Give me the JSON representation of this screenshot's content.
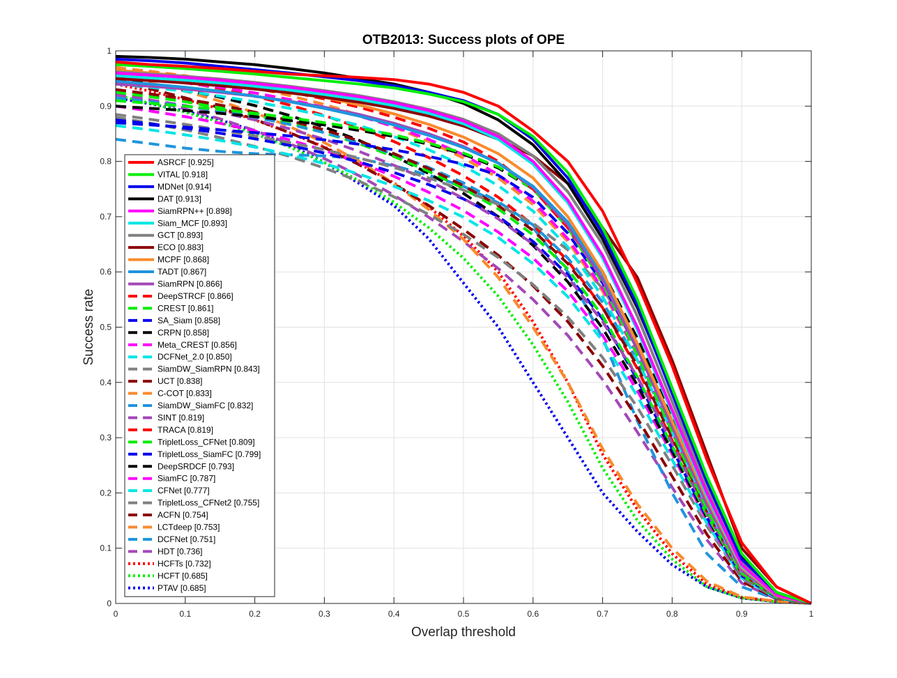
{
  "chart_data": {
    "type": "line",
    "title": "OTB2013: Success plots of OPE",
    "xlabel": "Overlap threshold",
    "ylabel": "Success rate",
    "xlim": [
      0,
      1
    ],
    "ylim": [
      0,
      1
    ],
    "grid": true,
    "legend_position": "bottom-left",
    "x_ticks": [
      "0",
      "0.1",
      "0.2",
      "0.3",
      "0.4",
      "0.5",
      "0.6",
      "0.7",
      "0.8",
      "0.9",
      "1"
    ],
    "y_ticks": [
      "0",
      "0.1",
      "0.2",
      "0.3",
      "0.4",
      "0.5",
      "0.6",
      "0.7",
      "0.8",
      "0.9",
      "1"
    ],
    "x": [
      0,
      0.05,
      0.1,
      0.15,
      0.2,
      0.25,
      0.3,
      0.35,
      0.4,
      0.45,
      0.5,
      0.55,
      0.6,
      0.65,
      0.7,
      0.75,
      0.8,
      0.85,
      0.9,
      0.95,
      1
    ],
    "series": [
      {
        "name": "ASRCF [0.925]",
        "color": "#ff0000",
        "style": "solid",
        "values": [
          0.98,
          0.975,
          0.972,
          0.968,
          0.963,
          0.958,
          0.955,
          0.952,
          0.948,
          0.94,
          0.925,
          0.9,
          0.855,
          0.8,
          0.71,
          0.58,
          0.43,
          0.26,
          0.11,
          0.03,
          0
        ]
      },
      {
        "name": "VITAL [0.918]",
        "color": "#00ee00",
        "style": "solid",
        "values": [
          0.975,
          0.972,
          0.968,
          0.963,
          0.958,
          0.952,
          0.946,
          0.94,
          0.933,
          0.922,
          0.908,
          0.885,
          0.845,
          0.78,
          0.68,
          0.55,
          0.39,
          0.23,
          0.09,
          0.02,
          0
        ]
      },
      {
        "name": "MDNet [0.914]",
        "color": "#0000ee",
        "style": "solid",
        "values": [
          0.985,
          0.982,
          0.978,
          0.972,
          0.966,
          0.96,
          0.953,
          0.946,
          0.937,
          0.925,
          0.91,
          0.885,
          0.84,
          0.77,
          0.67,
          0.54,
          0.38,
          0.22,
          0.08,
          0.02,
          0
        ]
      },
      {
        "name": "DAT [0.913]",
        "color": "#000000",
        "style": "solid",
        "values": [
          0.99,
          0.988,
          0.985,
          0.98,
          0.975,
          0.968,
          0.96,
          0.95,
          0.94,
          0.925,
          0.905,
          0.875,
          0.83,
          0.76,
          0.66,
          0.535,
          0.385,
          0.225,
          0.085,
          0.02,
          0
        ]
      },
      {
        "name": "SiamRPN++ [0.898]",
        "color": "#ff00ff",
        "style": "solid",
        "values": [
          0.96,
          0.956,
          0.952,
          0.947,
          0.941,
          0.934,
          0.926,
          0.917,
          0.906,
          0.892,
          0.873,
          0.845,
          0.8,
          0.73,
          0.63,
          0.5,
          0.35,
          0.2,
          0.07,
          0.015,
          0
        ]
      },
      {
        "name": "Siam_MCF [0.893]",
        "color": "#00e5e5",
        "style": "solid",
        "values": [
          0.955,
          0.951,
          0.947,
          0.942,
          0.936,
          0.929,
          0.921,
          0.912,
          0.901,
          0.887,
          0.868,
          0.84,
          0.795,
          0.725,
          0.625,
          0.495,
          0.345,
          0.195,
          0.068,
          0.015,
          0
        ]
      },
      {
        "name": "GCT [0.893]",
        "color": "#808080",
        "style": "solid",
        "values": [
          0.962,
          0.958,
          0.954,
          0.949,
          0.943,
          0.936,
          0.928,
          0.919,
          0.908,
          0.894,
          0.876,
          0.85,
          0.81,
          0.745,
          0.65,
          0.52,
          0.365,
          0.21,
          0.075,
          0.018,
          0
        ]
      },
      {
        "name": "ECO [0.883]",
        "color": "#8b0000",
        "style": "solid",
        "values": [
          0.95,
          0.946,
          0.942,
          0.937,
          0.931,
          0.924,
          0.916,
          0.907,
          0.896,
          0.882,
          0.864,
          0.84,
          0.81,
          0.76,
          0.68,
          0.59,
          0.44,
          0.27,
          0.1,
          0.03,
          0
        ]
      },
      {
        "name": "MCPF [0.868]",
        "color": "#f98a2c",
        "style": "solid",
        "values": [
          0.965,
          0.96,
          0.954,
          0.947,
          0.938,
          0.928,
          0.916,
          0.902,
          0.886,
          0.867,
          0.844,
          0.814,
          0.77,
          0.7,
          0.6,
          0.47,
          0.33,
          0.19,
          0.065,
          0.014,
          0
        ]
      },
      {
        "name": "TADT [0.867]",
        "color": "#1f95dd",
        "style": "solid",
        "values": [
          0.945,
          0.94,
          0.934,
          0.927,
          0.918,
          0.908,
          0.896,
          0.882,
          0.866,
          0.847,
          0.825,
          0.797,
          0.755,
          0.69,
          0.595,
          0.47,
          0.33,
          0.19,
          0.065,
          0.014,
          0
        ]
      },
      {
        "name": "SiamRPN [0.866]",
        "color": "#a347b8",
        "style": "solid",
        "values": [
          0.94,
          0.936,
          0.931,
          0.925,
          0.918,
          0.909,
          0.898,
          0.885,
          0.869,
          0.85,
          0.827,
          0.797,
          0.753,
          0.685,
          0.585,
          0.46,
          0.32,
          0.18,
          0.06,
          0.013,
          0
        ]
      },
      {
        "name": "DeepSTRCF [0.866]",
        "color": "#ff0000",
        "style": "dashed",
        "values": [
          0.965,
          0.96,
          0.954,
          0.946,
          0.937,
          0.926,
          0.913,
          0.898,
          0.88,
          0.86,
          0.835,
          0.8,
          0.75,
          0.68,
          0.59,
          0.47,
          0.33,
          0.19,
          0.065,
          0.014,
          0
        ]
      },
      {
        "name": "CREST [0.861]",
        "color": "#00ee00",
        "style": "dashed",
        "values": [
          0.91,
          0.905,
          0.9,
          0.894,
          0.887,
          0.879,
          0.87,
          0.86,
          0.848,
          0.833,
          0.815,
          0.79,
          0.75,
          0.68,
          0.58,
          0.45,
          0.31,
          0.17,
          0.055,
          0.012,
          0
        ]
      },
      {
        "name": "SA_Siam [0.858]",
        "color": "#0000ee",
        "style": "dashed",
        "values": [
          0.87,
          0.866,
          0.862,
          0.857,
          0.852,
          0.846,
          0.839,
          0.831,
          0.821,
          0.809,
          0.795,
          0.775,
          0.735,
          0.67,
          0.58,
          0.46,
          0.32,
          0.185,
          0.062,
          0.014,
          0
        ]
      },
      {
        "name": "CRPN [0.858]",
        "color": "#000000",
        "style": "dashed",
        "values": [
          0.9,
          0.896,
          0.892,
          0.887,
          0.881,
          0.874,
          0.866,
          0.856,
          0.845,
          0.831,
          0.813,
          0.788,
          0.75,
          0.69,
          0.6,
          0.48,
          0.34,
          0.2,
          0.07,
          0.016,
          0
        ]
      },
      {
        "name": "Meta_CREST [0.856]",
        "color": "#ff00ff",
        "style": "dashed",
        "values": [
          0.955,
          0.949,
          0.942,
          0.934,
          0.924,
          0.912,
          0.898,
          0.882,
          0.863,
          0.84,
          0.812,
          0.776,
          0.728,
          0.66,
          0.57,
          0.45,
          0.31,
          0.175,
          0.058,
          0.013,
          0
        ]
      },
      {
        "name": "DCFNet_2.0 [0.850]",
        "color": "#00e5e5",
        "style": "dashed",
        "values": [
          0.94,
          0.934,
          0.927,
          0.918,
          0.908,
          0.896,
          0.882,
          0.865,
          0.845,
          0.821,
          0.792,
          0.756,
          0.71,
          0.645,
          0.555,
          0.44,
          0.31,
          0.175,
          0.058,
          0.013,
          0
        ]
      },
      {
        "name": "SiamDW_SiamRPN [0.843]",
        "color": "#808080",
        "style": "dashed",
        "values": [
          0.885,
          0.876,
          0.867,
          0.857,
          0.846,
          0.834,
          0.821,
          0.806,
          0.789,
          0.77,
          0.748,
          0.722,
          0.688,
          0.64,
          0.57,
          0.47,
          0.33,
          0.19,
          0.065,
          0.015,
          0
        ]
      },
      {
        "name": "UCT [0.838]",
        "color": "#8b0000",
        "style": "dashed",
        "values": [
          0.93,
          0.922,
          0.913,
          0.902,
          0.889,
          0.874,
          0.857,
          0.837,
          0.814,
          0.787,
          0.756,
          0.72,
          0.675,
          0.615,
          0.535,
          0.43,
          0.3,
          0.17,
          0.055,
          0.012,
          0
        ]
      },
      {
        "name": "C-COT [0.833]",
        "color": "#f98a2c",
        "style": "dashed",
        "values": [
          0.97,
          0.963,
          0.955,
          0.945,
          0.933,
          0.919,
          0.903,
          0.884,
          0.862,
          0.836,
          0.806,
          0.77,
          0.722,
          0.655,
          0.565,
          0.45,
          0.31,
          0.175,
          0.058,
          0.013,
          0
        ]
      },
      {
        "name": "SiamDW_SiamFC [0.832]",
        "color": "#1f95dd",
        "style": "dashed",
        "values": [
          0.915,
          0.908,
          0.9,
          0.891,
          0.88,
          0.867,
          0.852,
          0.834,
          0.813,
          0.789,
          0.761,
          0.727,
          0.685,
          0.625,
          0.545,
          0.44,
          0.31,
          0.175,
          0.058,
          0.013,
          0
        ]
      },
      {
        "name": "SINT [0.819]",
        "color": "#a347b8",
        "style": "dashed",
        "values": [
          0.92,
          0.911,
          0.901,
          0.889,
          0.875,
          0.859,
          0.84,
          0.818,
          0.793,
          0.765,
          0.733,
          0.696,
          0.65,
          0.59,
          0.51,
          0.41,
          0.29,
          0.165,
          0.054,
          0.012,
          0
        ]
      },
      {
        "name": "TRACA [0.819]",
        "color": "#ff0000",
        "style": "dashed",
        "values": [
          0.96,
          0.952,
          0.943,
          0.932,
          0.918,
          0.902,
          0.883,
          0.861,
          0.836,
          0.807,
          0.774,
          0.735,
          0.685,
          0.62,
          0.535,
          0.425,
          0.295,
          0.165,
          0.053,
          0.012,
          0
        ]
      },
      {
        "name": "TripletLoss_CFNet [0.809]",
        "color": "#00ee00",
        "style": "dashed",
        "values": [
          0.925,
          0.917,
          0.908,
          0.897,
          0.884,
          0.869,
          0.852,
          0.832,
          0.809,
          0.782,
          0.751,
          0.714,
          0.667,
          0.605,
          0.52,
          0.41,
          0.285,
          0.16,
          0.05,
          0.011,
          0
        ]
      },
      {
        "name": "TripletLoss_SiamFC [0.799]",
        "color": "#0000ee",
        "style": "dashed",
        "values": [
          0.875,
          0.868,
          0.86,
          0.851,
          0.841,
          0.829,
          0.815,
          0.799,
          0.78,
          0.758,
          0.732,
          0.7,
          0.655,
          0.595,
          0.515,
          0.405,
          0.28,
          0.155,
          0.05,
          0.011,
          0
        ]
      },
      {
        "name": "DeepSRDCF [0.793]",
        "color": "#000000",
        "style": "dashed",
        "values": [
          0.95,
          0.94,
          0.929,
          0.916,
          0.901,
          0.883,
          0.862,
          0.838,
          0.81,
          0.778,
          0.742,
          0.7,
          0.648,
          0.582,
          0.498,
          0.395,
          0.275,
          0.155,
          0.05,
          0.011,
          0
        ]
      },
      {
        "name": "SiamFC [0.787]",
        "color": "#ff00ff",
        "style": "dashed",
        "values": [
          0.9,
          0.891,
          0.881,
          0.869,
          0.855,
          0.839,
          0.82,
          0.798,
          0.773,
          0.744,
          0.711,
          0.672,
          0.625,
          0.565,
          0.485,
          0.385,
          0.27,
          0.15,
          0.048,
          0.011,
          0
        ]
      },
      {
        "name": "CFNet [0.777]",
        "color": "#00e5e5",
        "style": "dashed",
        "values": [
          0.865,
          0.857,
          0.848,
          0.838,
          0.826,
          0.812,
          0.796,
          0.777,
          0.755,
          0.729,
          0.699,
          0.662,
          0.615,
          0.555,
          0.475,
          0.375,
          0.26,
          0.145,
          0.046,
          0.01,
          0
        ]
      },
      {
        "name": "TripletLoss_CFNet2 [0.755]",
        "color": "#808080",
        "style": "dashed",
        "values": [
          0.88,
          0.869,
          0.857,
          0.843,
          0.827,
          0.809,
          0.788,
          0.764,
          0.736,
          0.704,
          0.668,
          0.626,
          0.577,
          0.518,
          0.445,
          0.355,
          0.25,
          0.14,
          0.045,
          0.01,
          0
        ]
      },
      {
        "name": "ACFN [0.754]",
        "color": "#8b0000",
        "style": "dashed",
        "values": [
          0.945,
          0.931,
          0.915,
          0.897,
          0.876,
          0.852,
          0.825,
          0.794,
          0.759,
          0.72,
          0.677,
          0.63,
          0.575,
          0.51,
          0.43,
          0.335,
          0.23,
          0.125,
          0.04,
          0.009,
          0
        ]
      },
      {
        "name": "LCTdeep [0.753]",
        "color": "#f98a2c",
        "style": "dashed",
        "values": [
          0.955,
          0.942,
          0.927,
          0.909,
          0.888,
          0.863,
          0.834,
          0.8,
          0.76,
          0.713,
          0.659,
          0.59,
          0.5,
          0.4,
          0.28,
          0.18,
          0.1,
          0.04,
          0.012,
          0.004,
          0
        ]
      },
      {
        "name": "DCFNet [0.751]",
        "color": "#1f95dd",
        "style": "dashed",
        "values": [
          0.84,
          0.832,
          0.824,
          0.818,
          0.814,
          0.812,
          0.81,
          0.805,
          0.792,
          0.775,
          0.755,
          0.725,
          0.68,
          0.6,
          0.48,
          0.33,
          0.2,
          0.09,
          0.03,
          0.008,
          0
        ]
      },
      {
        "name": "HDT [0.736]",
        "color": "#a347b8",
        "style": "dashed",
        "values": [
          0.925,
          0.911,
          0.895,
          0.877,
          0.856,
          0.832,
          0.805,
          0.774,
          0.739,
          0.699,
          0.655,
          0.606,
          0.55,
          0.485,
          0.405,
          0.31,
          0.21,
          0.115,
          0.037,
          0.008,
          0
        ]
      },
      {
        "name": "HCFTs [0.732]",
        "color": "#ff0000",
        "style": "dotted",
        "values": [
          0.94,
          0.927,
          0.912,
          0.895,
          0.875,
          0.852,
          0.826,
          0.796,
          0.761,
          0.718,
          0.665,
          0.6,
          0.51,
          0.4,
          0.27,
          0.17,
          0.09,
          0.035,
          0.011,
          0.004,
          0
        ]
      },
      {
        "name": "HCFT [0.685]",
        "color": "#00ee00",
        "style": "dotted",
        "values": [
          0.92,
          0.905,
          0.889,
          0.871,
          0.85,
          0.826,
          0.798,
          0.765,
          0.726,
          0.68,
          0.625,
          0.556,
          0.468,
          0.365,
          0.245,
          0.15,
          0.08,
          0.03,
          0.01,
          0.003,
          0
        ]
      },
      {
        "name": "PTAV [0.685]",
        "color": "#0000ee",
        "style": "dotted",
        "values": [
          0.915,
          0.904,
          0.891,
          0.875,
          0.855,
          0.83,
          0.798,
          0.76,
          0.72,
          0.66,
          0.58,
          0.5,
          0.4,
          0.3,
          0.2,
          0.13,
          0.07,
          0.03,
          0.01,
          0.003,
          0
        ]
      }
    ]
  }
}
